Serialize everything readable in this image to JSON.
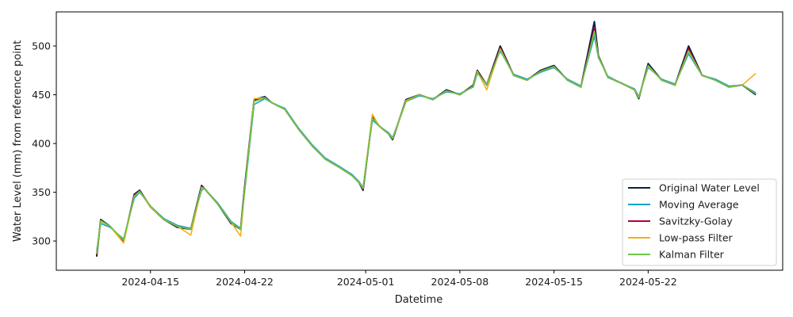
{
  "chart_data": {
    "type": "line",
    "title": "",
    "xlabel": "Datetime",
    "ylabel": "Water Level (mm) from reference point",
    "x_range": [
      "2024-04-08",
      "2024-06-01"
    ],
    "ylim": [
      270,
      535
    ],
    "grid": false,
    "legend_position": "lower right",
    "x_ticks": [
      "2024-04-15",
      "2024-04-22",
      "2024-05-01",
      "2024-05-08",
      "2024-05-15",
      "2024-05-22"
    ],
    "y_ticks": [
      300,
      350,
      400,
      450,
      500
    ],
    "x": [
      "2024-04-11",
      "2024-04-11.3",
      "2024-04-12",
      "2024-04-13",
      "2024-04-13.8",
      "2024-04-14.2",
      "2024-04-15",
      "2024-04-16",
      "2024-04-17",
      "2024-04-18",
      "2024-04-18.8",
      "2024-04-19",
      "2024-04-20",
      "2024-04-21",
      "2024-04-21.7",
      "2024-04-22",
      "2024-04-22.7",
      "2024-04-23.5",
      "2024-04-24",
      "2024-04-25",
      "2024-04-26",
      "2024-04-27",
      "2024-04-28",
      "2024-04-29",
      "2024-04-30",
      "2024-04-30.5",
      "2024-04-30.8",
      "2024-05-01.5",
      "2024-05-02",
      "2024-05-02.7",
      "2024-05-03",
      "2024-05-04",
      "2024-05-05",
      "2024-05-06",
      "2024-05-07",
      "2024-05-08",
      "2024-05-09",
      "2024-05-09.3",
      "2024-05-10",
      "2024-05-11",
      "2024-05-12",
      "2024-05-13",
      "2024-05-14",
      "2024-05-15",
      "2024-05-16",
      "2024-05-17",
      "2024-05-18",
      "2024-05-18.3",
      "2024-05-19",
      "2024-05-20",
      "2024-05-21",
      "2024-05-21.3",
      "2024-05-22",
      "2024-05-23",
      "2024-05-24",
      "2024-05-25",
      "2024-05-26",
      "2024-05-27",
      "2024-05-28",
      "2024-05-29",
      "2024-05-30"
    ],
    "series": [
      {
        "name": "Original Water Level",
        "color": "#0a1f44",
        "values": [
          284,
          322,
          315,
          299,
          348,
          352,
          335,
          322,
          314,
          312,
          357,
          354,
          338,
          318,
          312,
          355,
          445,
          448,
          442,
          435,
          415,
          398,
          384,
          376,
          367,
          360,
          352,
          428,
          418,
          410,
          404,
          445,
          450,
          445,
          455,
          450,
          460,
          475,
          460,
          500,
          470,
          465,
          475,
          480,
          465,
          458,
          525,
          490,
          468,
          462,
          455,
          446,
          482,
          465,
          460,
          500,
          470,
          465,
          458,
          460,
          450
        ]
      },
      {
        "name": "Moving Average",
        "color": "#17a2c8",
        "values": [
          290,
          318,
          314,
          302,
          344,
          350,
          336,
          323,
          316,
          313,
          352,
          354,
          339,
          320,
          313,
          350,
          440,
          446,
          442,
          436,
          416,
          399,
          385,
          377,
          368,
          361,
          355,
          424,
          418,
          411,
          406,
          443,
          449,
          446,
          453,
          451,
          458,
          472,
          461,
          495,
          471,
          466,
          473,
          478,
          466,
          459,
          510,
          488,
          469,
          462,
          456,
          448,
          478,
          466,
          461,
          492,
          470,
          466,
          459,
          460,
          452
        ]
      },
      {
        "name": "Savitzky-Golay",
        "color": "#b0003a",
        "values": [
          286,
          321,
          315,
          300,
          347,
          351,
          335,
          322,
          315,
          312,
          356,
          354,
          338,
          319,
          312,
          354,
          444,
          447,
          442,
          435,
          415,
          398,
          384,
          376,
          367,
          360,
          353,
          427,
          418,
          410,
          405,
          444,
          450,
          445,
          454,
          450,
          459,
          474,
          460,
          498,
          470,
          465,
          474,
          479,
          465,
          458,
          518,
          489,
          468,
          462,
          455,
          447,
          480,
          465,
          460,
          497,
          470,
          465,
          458,
          460,
          451
        ]
      },
      {
        "name": "Low-pass Filter",
        "color": "#f2b01e",
        "values": [
          287,
          320,
          315,
          298,
          346,
          351,
          335,
          322,
          315,
          306,
          355,
          354,
          338,
          319,
          305,
          352,
          446,
          447,
          442,
          435,
          415,
          398,
          384,
          376,
          367,
          360,
          354,
          430,
          418,
          410,
          405,
          444,
          450,
          445,
          454,
          450,
          459,
          474,
          455,
          497,
          470,
          465,
          474,
          479,
          465,
          458,
          515,
          489,
          468,
          462,
          455,
          447,
          479,
          465,
          460,
          495,
          470,
          465,
          458,
          460,
          472
        ]
      },
      {
        "name": "Kalman Filter",
        "color": "#6cc644",
        "values": [
          288,
          321,
          315,
          301,
          346,
          351,
          336,
          322,
          315,
          312,
          355,
          354,
          338,
          319,
          312,
          352,
          443,
          447,
          442,
          435,
          415,
          398,
          384,
          376,
          367,
          360,
          354,
          426,
          418,
          410,
          405,
          443,
          450,
          445,
          454,
          450,
          459,
          473,
          460,
          496,
          470,
          465,
          474,
          479,
          465,
          458,
          514,
          489,
          468,
          462,
          455,
          447,
          480,
          465,
          460,
          494,
          470,
          465,
          458,
          460,
          451
        ]
      }
    ]
  }
}
